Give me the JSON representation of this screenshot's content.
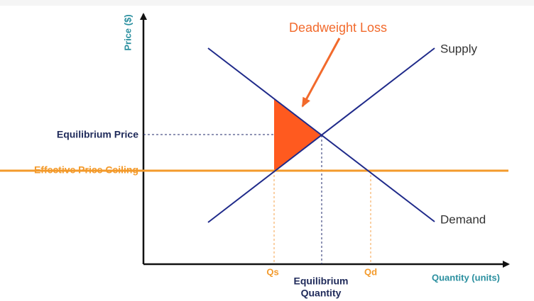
{
  "axes": {
    "y_label": "Price ($)",
    "x_label": "Quantity (units)"
  },
  "curves": {
    "supply": "Supply",
    "demand": "Demand"
  },
  "price_levels": {
    "equilibrium": "Equilibrium Price",
    "ceiling": "Effective Price Ceiling"
  },
  "quantities": {
    "qs": "Qs",
    "equilibrium": [
      "Equilibrium",
      "Quantity"
    ],
    "qd": "Qd"
  },
  "annotation": "Deadweight Loss"
}
